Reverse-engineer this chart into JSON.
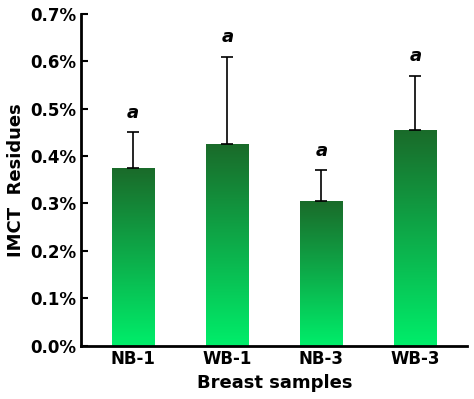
{
  "categories": [
    "NB-1",
    "WB-1",
    "NB-3",
    "WB-3"
  ],
  "values": [
    0.00375,
    0.00425,
    0.00305,
    0.00455
  ],
  "errors": [
    0.00075,
    0.00185,
    0.00065,
    0.00115
  ],
  "sig_labels": [
    "a",
    "a",
    "a",
    "a"
  ],
  "xlabel": "Breast samples",
  "ylabel": "IMCT  Residues",
  "ylim": [
    0,
    0.007
  ],
  "yticks": [
    0.0,
    0.001,
    0.002,
    0.003,
    0.004,
    0.005,
    0.006,
    0.007
  ],
  "ytick_labels": [
    "0.0%",
    "0.1%",
    "0.2%",
    "0.3%",
    "0.4%",
    "0.5%",
    "0.6%",
    "0.7%"
  ],
  "bar_color_bottom": "#00ee6a",
  "bar_color_top": "#1a6b2a",
  "bar_width": 0.45,
  "background_color": "#ffffff",
  "errorbar_color": "#000000",
  "sig_fontsize": 13,
  "axis_label_fontsize": 13,
  "tick_fontsize": 12
}
